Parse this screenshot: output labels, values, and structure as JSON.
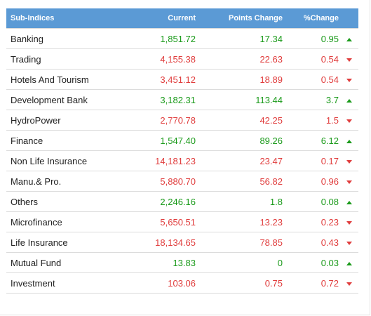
{
  "table": {
    "headers": {
      "name": "Sub-Indices",
      "current": "Current",
      "points": "Points Change",
      "percent": "%Change"
    },
    "rows": [
      {
        "name": "Banking",
        "current": "1,851.72",
        "points": "17.34",
        "percent": "0.95",
        "direction": "up"
      },
      {
        "name": "Trading",
        "current": "4,155.38",
        "points": "22.63",
        "percent": "0.54",
        "direction": "down"
      },
      {
        "name": "Hotels And Tourism",
        "current": "3,451.12",
        "points": "18.89",
        "percent": "0.54",
        "direction": "down"
      },
      {
        "name": "Development Bank",
        "current": "3,182.31",
        "points": "113.44",
        "percent": "3.7",
        "direction": "up"
      },
      {
        "name": "HydroPower",
        "current": "2,770.78",
        "points": "42.25",
        "percent": "1.5",
        "direction": "down"
      },
      {
        "name": "Finance",
        "current": "1,547.40",
        "points": "89.26",
        "percent": "6.12",
        "direction": "up"
      },
      {
        "name": "Non Life Insurance",
        "current": "14,181.23",
        "points": "23.47",
        "percent": "0.17",
        "direction": "down"
      },
      {
        "name": "Manu.& Pro.",
        "current": "5,880.70",
        "points": "56.82",
        "percent": "0.96",
        "direction": "down"
      },
      {
        "name": "Others",
        "current": "2,246.16",
        "points": "1.8",
        "percent": "0.08",
        "direction": "up"
      },
      {
        "name": "Microfinance",
        "current": "5,650.51",
        "points": "13.23",
        "percent": "0.23",
        "direction": "down"
      },
      {
        "name": "Life Insurance",
        "current": "18,134.65",
        "points": "78.85",
        "percent": "0.43",
        "direction": "down"
      },
      {
        "name": "Mutual Fund",
        "current": "13.83",
        "points": "0",
        "percent": "0.03",
        "direction": "up"
      },
      {
        "name": "Investment",
        "current": "103.06",
        "points": "0.75",
        "percent": "0.72",
        "direction": "down"
      }
    ]
  },
  "colors": {
    "header_bg": "#5b9ad5",
    "up": "#1a9a1a",
    "down": "#e03c3c"
  },
  "icons": {
    "up": "triangle-up-icon",
    "down": "triangle-down-icon"
  }
}
